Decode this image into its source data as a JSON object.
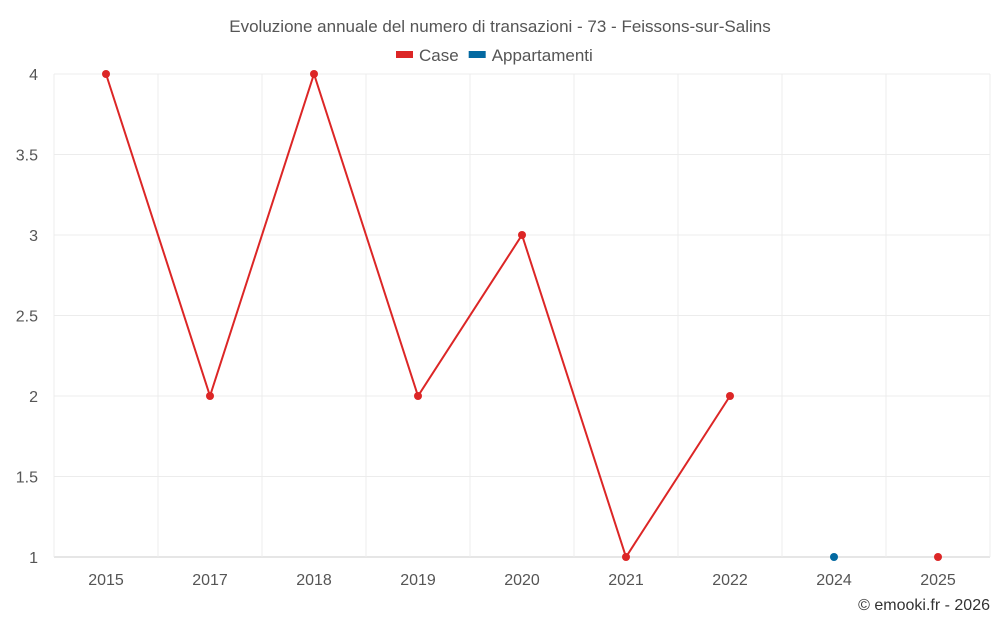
{
  "chart_data": {
    "type": "line",
    "title": "Evoluzione annuale del numero di transazioni - 73 - Feissons-sur-Salins",
    "categories": [
      "2015",
      "2017",
      "2018",
      "2019",
      "2020",
      "2021",
      "2022",
      "2024",
      "2025"
    ],
    "series": [
      {
        "name": "Case",
        "color": "#dc2626",
        "values": [
          4,
          2,
          4,
          2,
          3,
          1,
          2,
          null,
          1
        ]
      },
      {
        "name": "Appartamenti",
        "color": "#0369a1",
        "values": [
          null,
          null,
          null,
          null,
          null,
          null,
          null,
          1,
          null
        ]
      }
    ],
    "ylim": [
      1,
      4
    ],
    "yticks": [
      1,
      1.5,
      2,
      2.5,
      3,
      3.5,
      4
    ],
    "xlabel": "",
    "ylabel": "",
    "grid": true,
    "legend": "top-center",
    "credit": "© emooki.fr - 2026"
  }
}
